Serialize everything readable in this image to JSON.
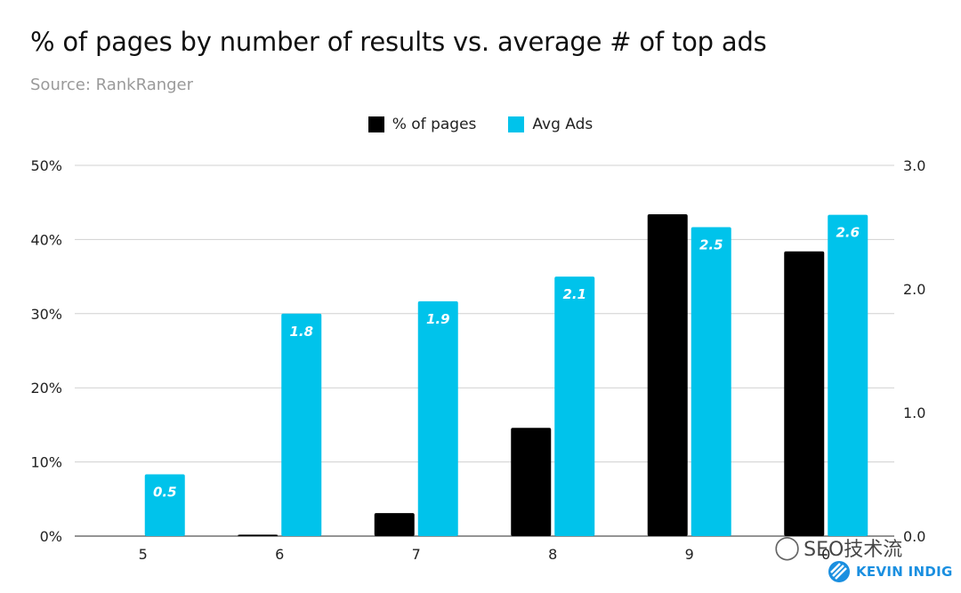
{
  "chart_data": {
    "type": "bar",
    "title": "% of pages by number of results vs. average # of top ads",
    "subtitle": "Source: RankRanger",
    "categories": [
      "5",
      "6",
      "7",
      "8",
      "9",
      "0"
    ],
    "series": [
      {
        "name": "% of pages",
        "color": "#000000",
        "axis": "left",
        "values": [
          0,
          0.2,
          3.1,
          14.6,
          43.4,
          38.4
        ]
      },
      {
        "name": "Avg Ads",
        "color": "#00c3eb",
        "axis": "right",
        "values": [
          0.5,
          1.8,
          1.9,
          2.1,
          2.5,
          2.6
        ],
        "data_labels": [
          "0.5",
          "1.8",
          "1.9",
          "2.1",
          "2.5",
          "2.6"
        ]
      }
    ],
    "y_left": {
      "ylim": [
        0,
        50
      ],
      "ticks": [
        "0%",
        "10%",
        "20%",
        "30%",
        "40%",
        "50%"
      ]
    },
    "y_right": {
      "ylim": [
        0,
        3
      ],
      "ticks": [
        "0.0",
        "1.0",
        "2.0",
        "3.0"
      ]
    },
    "grid": true,
    "legend": "top-center"
  },
  "watermark": {
    "text": "SEO技术流",
    "brand": "KEVIN INDIG"
  }
}
